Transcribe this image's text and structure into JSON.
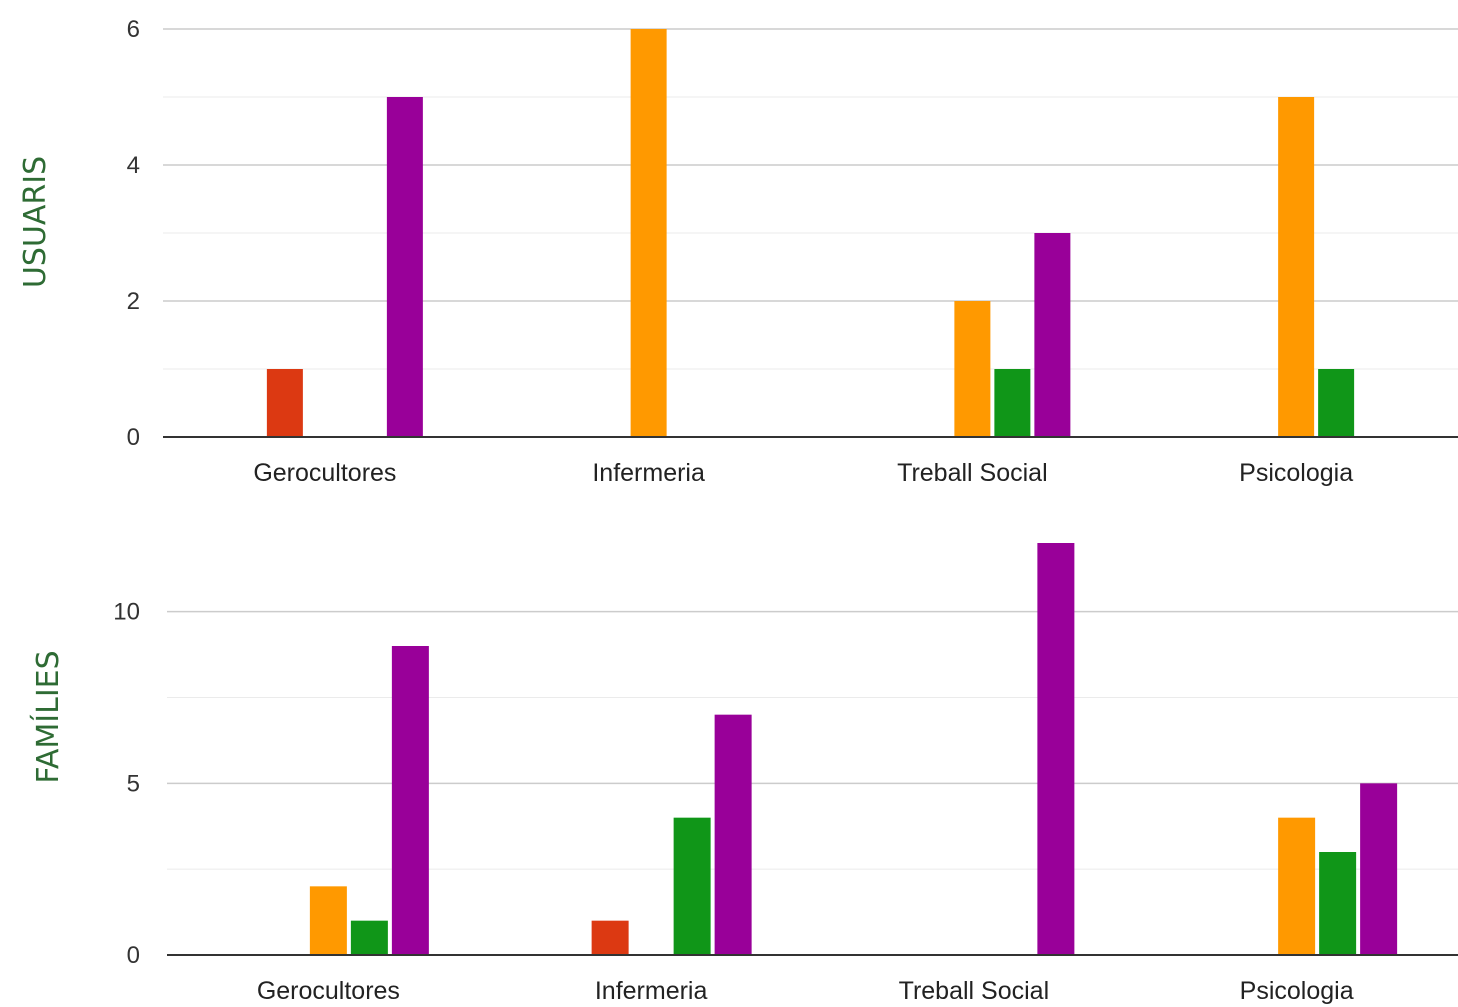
{
  "colors": {
    "blue": "#3366cc",
    "red": "#dc3912",
    "orange": "#ff9900",
    "green": "#109618",
    "purple": "#990099",
    "grid": "#dddddd",
    "axis": "#333333",
    "side_label": "#2e6b34"
  },
  "chart_data": [
    {
      "type": "bar",
      "side_label": "USUARIS",
      "categories": [
        "Gerocultores",
        "Infermeria",
        "Treball Social",
        "Psicologia"
      ],
      "series": [
        {
          "color": "blue",
          "values": [
            0,
            0,
            0,
            0
          ]
        },
        {
          "color": "red",
          "values": [
            1,
            0,
            0,
            0
          ]
        },
        {
          "color": "orange",
          "values": [
            0,
            6,
            2,
            5
          ]
        },
        {
          "color": "green",
          "values": [
            0,
            0,
            1,
            1
          ]
        },
        {
          "color": "purple",
          "values": [
            5,
            0,
            3,
            0
          ]
        }
      ],
      "ylim": [
        0,
        6
      ],
      "yticks": [
        0,
        2,
        4,
        6
      ],
      "yticks_labels": [
        "0",
        "2",
        "4",
        "6"
      ],
      "grid": true
    },
    {
      "type": "bar",
      "side_label": "FAMÍLIES",
      "categories": [
        "Gerocultores",
        "Infermeria",
        "Treball Social",
        "Psicologia"
      ],
      "series": [
        {
          "color": "blue",
          "values": [
            0,
            0,
            0,
            0
          ]
        },
        {
          "color": "red",
          "values": [
            0,
            1,
            0,
            0
          ]
        },
        {
          "color": "orange",
          "values": [
            2,
            0,
            0,
            4
          ]
        },
        {
          "color": "green",
          "values": [
            1,
            4,
            0,
            3
          ]
        },
        {
          "color": "purple",
          "values": [
            9,
            7,
            12,
            5
          ]
        }
      ],
      "ylim": [
        0,
        12
      ],
      "yticks": [
        0,
        5,
        10
      ],
      "yticks_labels": [
        "0",
        "5",
        "10"
      ],
      "grid": true
    }
  ]
}
